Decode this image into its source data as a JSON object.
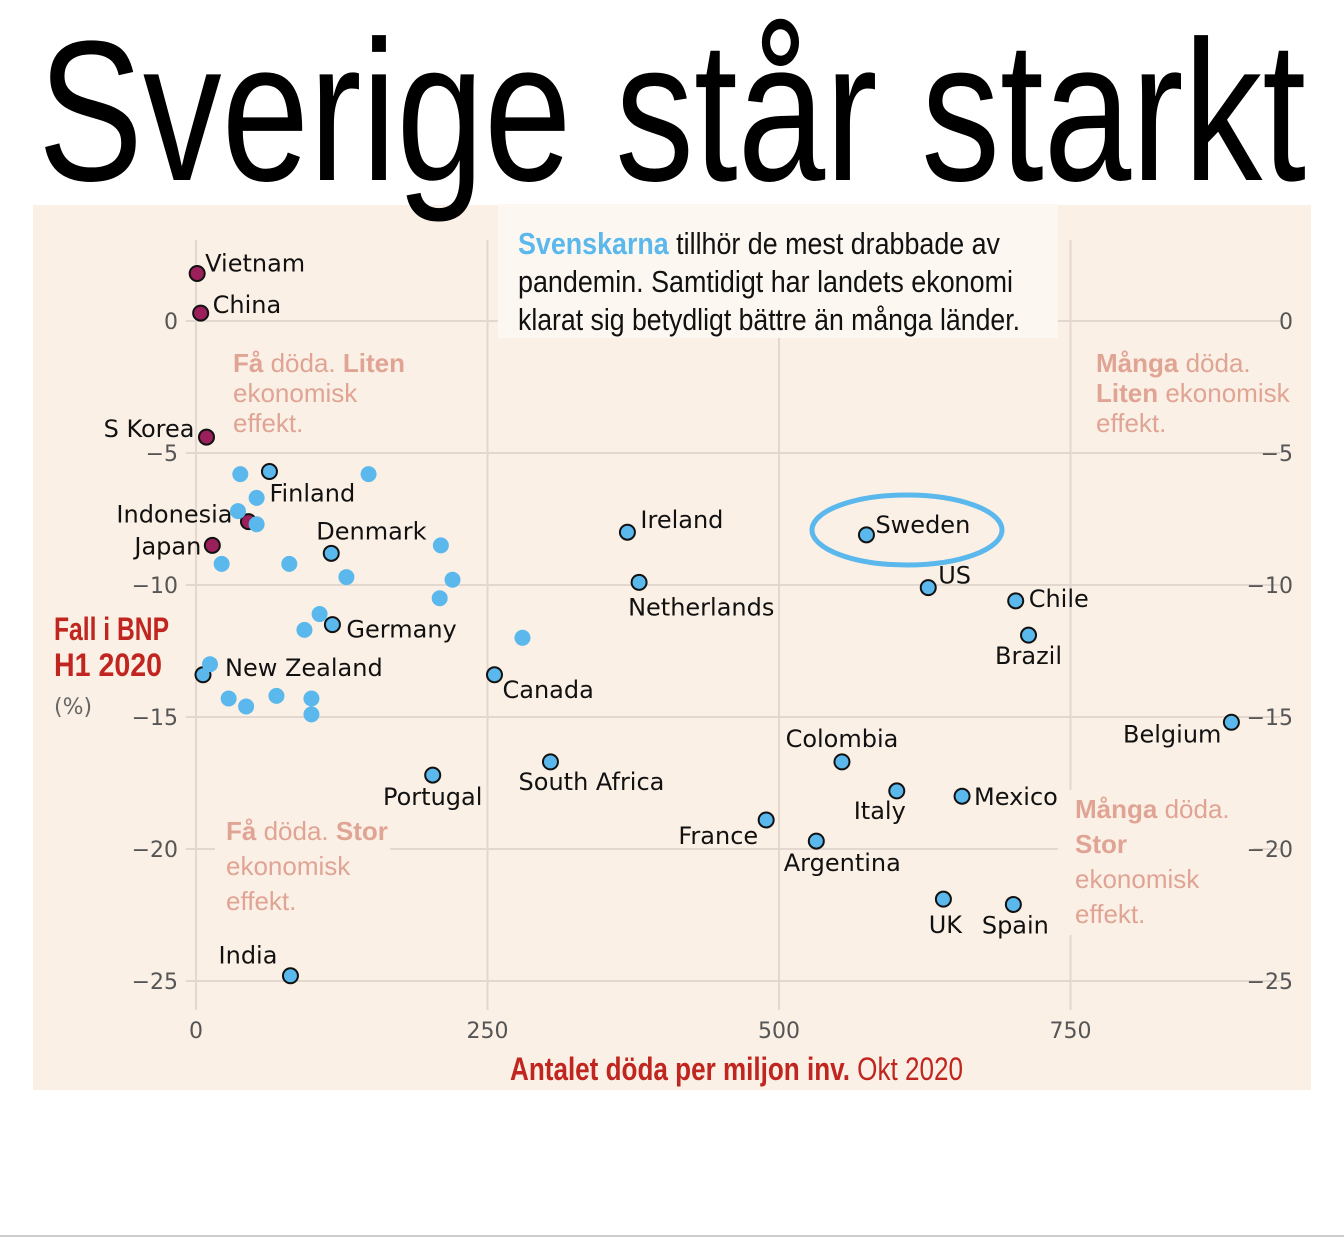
{
  "title": "Sverige står starkt",
  "intro": {
    "highlight": "Svenskarna",
    "line1_rest": " tillhör de mest drabbade av",
    "line2": "pandemin. Samtidigt har landets ekonomi",
    "line3": "klarat sig betydligt  bättre än många länder."
  },
  "colors": {
    "background": "#fbf0e6",
    "blue": "#5bb8ec",
    "purple": "#9b1f5a",
    "annotation": "#e0a494",
    "axis_title": "#c0261f"
  },
  "annotations": {
    "top_left": {
      "bold1": "Få",
      "text1": " döda. ",
      "bold2": "Liten",
      "line2": "ekonomisk",
      "line3": "effekt."
    },
    "bottom_left": {
      "bold1": "Få",
      "text1": " döda. ",
      "bold2": "Stor",
      "line2": "ekonomisk",
      "line3": "effekt."
    },
    "top_right": {
      "bold1": "Många",
      "text1": " döda.",
      "bold2": "Liten",
      "text2": " ekonomisk",
      "line3": "effekt."
    },
    "bottom_right": {
      "bold1": "Många",
      "text1": " döda.",
      "bold2": "Stor",
      "line3": "ekonomisk",
      "line4": "effekt."
    }
  },
  "chart_data": {
    "type": "scatter",
    "title": "Sverige står starkt",
    "xlabel": "Antalet döda per miljon inv.",
    "xlabel_suffix": " Okt 2020",
    "ylabel_line1": "Fall i BNP",
    "ylabel_line2": "H1 2020",
    "ylabel_unit": "(%)",
    "xlim": [
      0,
      900
    ],
    "ylim": [
      -25,
      2
    ],
    "xticks": [
      "0",
      "250",
      "500",
      "750"
    ],
    "xtick_values": [
      0,
      250,
      500,
      750
    ],
    "yticks": [
      "0",
      "−5",
      "−10",
      "−15",
      "−20",
      "−25"
    ],
    "ytick_values": [
      0,
      -5,
      -10,
      -15,
      -20,
      -25
    ],
    "grid": true,
    "highlighted": "Sweden",
    "points": [
      {
        "label": "Vietnam",
        "x": 1,
        "y": 1.8,
        "group": "purple"
      },
      {
        "label": "China",
        "x": 4,
        "y": 0.3,
        "group": "purple"
      },
      {
        "label": "S Korea",
        "x": 9,
        "y": -4.4,
        "group": "purple"
      },
      {
        "label": "Indonesia",
        "x": 45,
        "y": -7.6,
        "group": "purple"
      },
      {
        "label": "Japan",
        "x": 14,
        "y": -8.5,
        "group": "purple"
      },
      {
        "label": "Finland",
        "x": 63,
        "y": -5.7,
        "group": "blue"
      },
      {
        "label": "Denmark",
        "x": 116,
        "y": -8.8,
        "group": "blue"
      },
      {
        "label": "Germany",
        "x": 117,
        "y": -11.5,
        "group": "blue"
      },
      {
        "label": "New Zealand",
        "x": 6,
        "y": -13.4,
        "group": "blue"
      },
      {
        "label": "Ireland",
        "x": 370,
        "y": -8.0,
        "group": "blue"
      },
      {
        "label": "Netherlands",
        "x": 380,
        "y": -9.9,
        "group": "blue"
      },
      {
        "label": "Canada",
        "x": 256,
        "y": -13.4,
        "group": "blue"
      },
      {
        "label": "Portugal",
        "x": 203,
        "y": -17.2,
        "group": "blue"
      },
      {
        "label": "South Africa",
        "x": 304,
        "y": -16.7,
        "group": "blue"
      },
      {
        "label": "France",
        "x": 489,
        "y": -18.9,
        "group": "blue"
      },
      {
        "label": "Argentina",
        "x": 532,
        "y": -19.7,
        "group": "blue"
      },
      {
        "label": "Colombia",
        "x": 554,
        "y": -16.7,
        "group": "blue"
      },
      {
        "label": "Italy",
        "x": 601,
        "y": -17.8,
        "group": "blue"
      },
      {
        "label": "Mexico",
        "x": 657,
        "y": -18.0,
        "group": "blue"
      },
      {
        "label": "UK",
        "x": 641,
        "y": -21.9,
        "group": "blue"
      },
      {
        "label": "Spain",
        "x": 701,
        "y": -22.1,
        "group": "blue"
      },
      {
        "label": "Sweden",
        "x": 575,
        "y": -8.1,
        "group": "blue"
      },
      {
        "label": "US",
        "x": 628,
        "y": -10.1,
        "group": "blue"
      },
      {
        "label": "Chile",
        "x": 703,
        "y": -10.6,
        "group": "blue"
      },
      {
        "label": "Brazil",
        "x": 714,
        "y": -11.9,
        "group": "blue"
      },
      {
        "label": "Belgium",
        "x": 888,
        "y": -15.2,
        "group": "blue"
      },
      {
        "label": "India",
        "x": 81,
        "y": -24.8,
        "group": "blue"
      },
      {
        "x": 38,
        "y": -5.8,
        "group": "blue"
      },
      {
        "x": 148,
        "y": -5.8,
        "group": "blue"
      },
      {
        "x": 52,
        "y": -6.7,
        "group": "blue"
      },
      {
        "x": 36,
        "y": -7.2,
        "group": "blue"
      },
      {
        "x": 52,
        "y": -7.7,
        "group": "blue"
      },
      {
        "x": 22,
        "y": -9.2,
        "group": "blue"
      },
      {
        "x": 80,
        "y": -9.2,
        "group": "blue"
      },
      {
        "x": 210,
        "y": -8.5,
        "group": "blue"
      },
      {
        "x": 220,
        "y": -9.8,
        "group": "blue"
      },
      {
        "x": 209,
        "y": -10.5,
        "group": "blue"
      },
      {
        "x": 129,
        "y": -9.7,
        "group": "blue"
      },
      {
        "x": 106,
        "y": -11.1,
        "group": "blue"
      },
      {
        "x": 93,
        "y": -11.7,
        "group": "blue"
      },
      {
        "x": 280,
        "y": -12.0,
        "group": "blue"
      },
      {
        "x": 12,
        "y": -13.0,
        "group": "blue"
      },
      {
        "x": 28,
        "y": -14.3,
        "group": "blue"
      },
      {
        "x": 43,
        "y": -14.6,
        "group": "blue"
      },
      {
        "x": 69,
        "y": -14.2,
        "group": "blue"
      },
      {
        "x": 99,
        "y": -14.3,
        "group": "blue"
      },
      {
        "x": 99,
        "y": -14.9,
        "group": "blue"
      }
    ]
  }
}
